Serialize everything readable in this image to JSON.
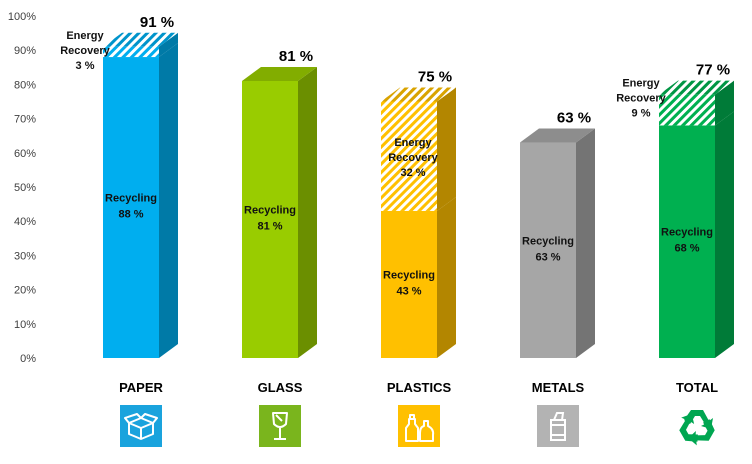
{
  "chart_data": {
    "type": "bar",
    "stacked": true,
    "three_d": true,
    "ylim": [
      0,
      100
    ],
    "yticks": [
      "0%",
      "10%",
      "20%",
      "30%",
      "40%",
      "50%",
      "60%",
      "70%",
      "80%",
      "90%",
      "100%"
    ],
    "categories": [
      "PAPER",
      "GLASS",
      "PLASTICS",
      "METALS",
      "TOTAL"
    ],
    "totals": [
      91,
      81,
      75,
      63,
      77
    ],
    "total_labels": [
      "91 %",
      "81 %",
      "75 %",
      "63 %",
      "77 %"
    ],
    "colors": [
      "#00aeef",
      "#99cc00",
      "#ffc000",
      "#a6a6a6",
      "#00b050"
    ],
    "series": [
      {
        "name": "Recycling",
        "values": [
          88,
          81,
          43,
          63,
          68
        ],
        "labels": [
          [
            "Recycling",
            "88 %"
          ],
          [
            "Recycling",
            "81 %"
          ],
          [
            "Recycling",
            "43 %"
          ],
          [
            "Recycling",
            "63 %"
          ],
          [
            "Recycling",
            "68 %"
          ]
        ],
        "fill": "solid"
      },
      {
        "name": "Energy Recovery",
        "values": [
          3,
          0,
          32,
          0,
          9
        ],
        "labels": [
          [
            "Energy",
            "Recovery",
            "3 %"
          ],
          null,
          [
            "Energy",
            "Recovery",
            "32 %"
          ],
          null,
          [
            "Energy",
            "Recovery",
            "9 %"
          ]
        ],
        "fill": "hatched"
      }
    ]
  },
  "icons": [
    "box-icon",
    "glass-icon",
    "bottles-icon",
    "can-icon",
    "recycle-icon"
  ],
  "icon_colors": [
    "#1aa3dd",
    "#7ab51d",
    "#ffc000",
    "#b3b3b3",
    "#00a651"
  ]
}
